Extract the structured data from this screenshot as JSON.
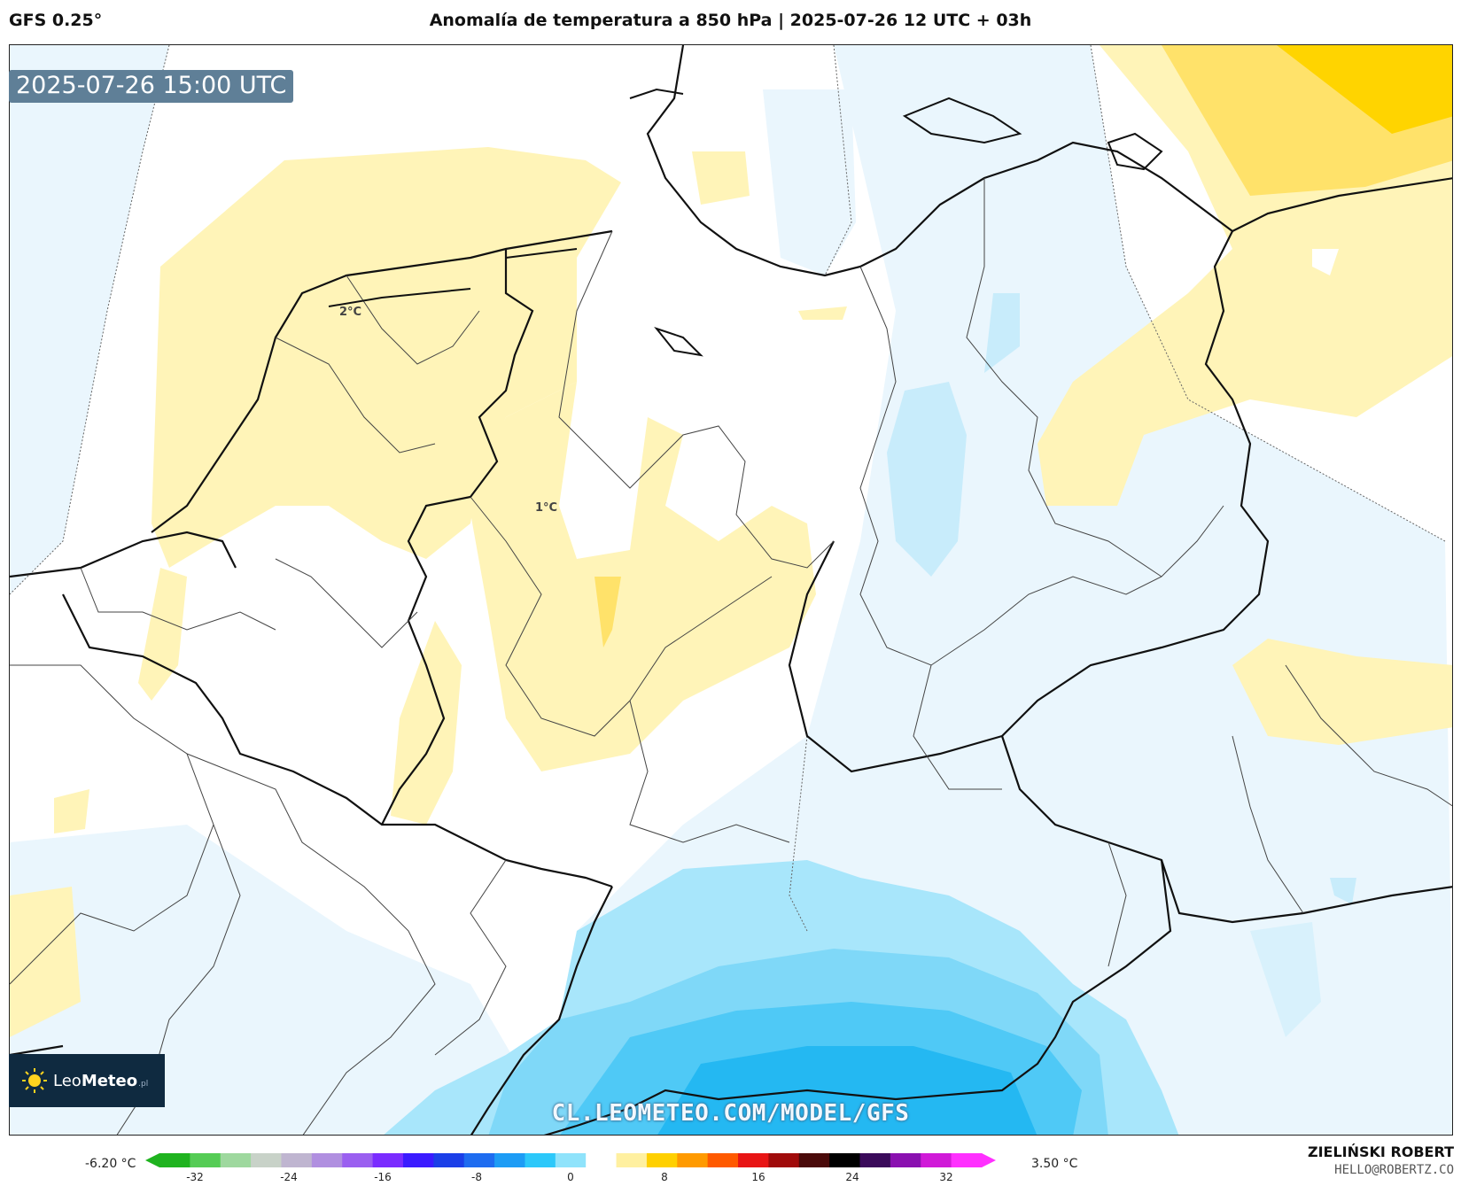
{
  "header": {
    "model": "GFS 0.25°",
    "title": "Anomalía de temperatura a 850 hPa | 2025-07-26 12 UTC + 03h"
  },
  "map": {
    "valid_time": "2025-07-26 15:00 UTC",
    "contour_labels": [
      "2°C",
      "1°C"
    ],
    "watermark": "CL.LEOMETEO.COM/MODEL/GFS",
    "logo": {
      "name": "Leo",
      "bold": "Meteo",
      "suffix": ".pl",
      "icon": "sun-icon"
    }
  },
  "colorbar": {
    "min_label": "-6.20 °C",
    "max_label": "3.50 °C",
    "ticks": [
      "-32",
      "-24",
      "-16",
      "-8",
      "0",
      "8",
      "16",
      "24",
      "32"
    ],
    "colors": [
      "#1fb31f",
      "#55cc55",
      "#9ed89e",
      "#c8d2c8",
      "#bfb5d0",
      "#b08fe0",
      "#9a5ff0",
      "#7a2cff",
      "#3b1bff",
      "#1b3fe8",
      "#1e6cf0",
      "#1d9cf5",
      "#2cc8fa",
      "#8fe3fb",
      "#ffffff",
      "#fff0a0",
      "#ffd000",
      "#ff9a00",
      "#ff5a00",
      "#e81515",
      "#a00b0b",
      "#4a0a0a",
      "#000000",
      "#3a0a5a",
      "#8a10b0",
      "#d01ad8",
      "#ff30ff"
    ]
  },
  "credit": {
    "author": "ZIELIŃSKI ROBERT",
    "email": "HELLO@ROBERTZ.CO"
  }
}
